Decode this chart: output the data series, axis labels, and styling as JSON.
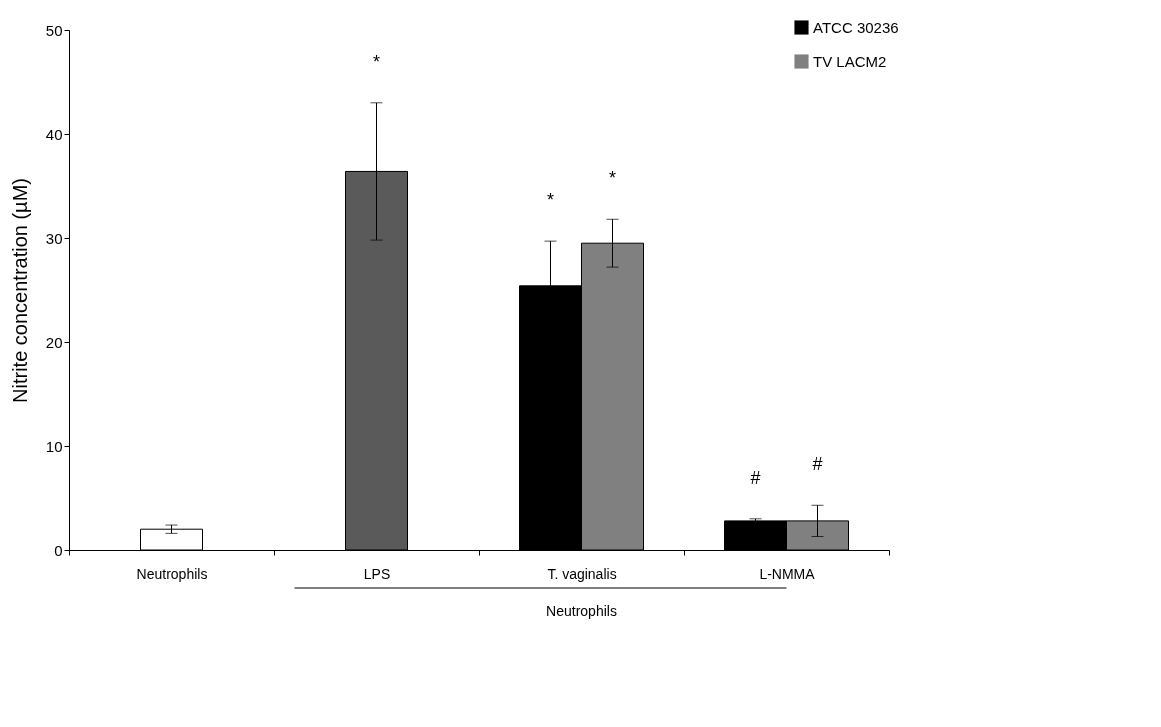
{
  "chart_data": {
    "type": "bar",
    "ylabel": "Nitrite concentration (µM)",
    "categories": [
      "Neutrophils",
      "LPS",
      "T. vaginalis",
      "L-NMMA"
    ],
    "series": [
      {
        "color": null,
        "colors": [
          "#ffffff",
          "#5a5a5a",
          null,
          null
        ],
        "values": [
          2.0,
          36.4,
          null,
          null
        ],
        "errors": [
          0.4,
          6.6,
          null,
          null
        ]
      },
      {
        "name": "ATCC 30236",
        "color": "#000000",
        "values": [
          null,
          null,
          25.4,
          2.8
        ],
        "errors": [
          null,
          null,
          4.3,
          0.2
        ]
      },
      {
        "name": "TV LACM2",
        "color": "#808080",
        "values": [
          null,
          null,
          29.5,
          2.8
        ],
        "errors": [
          null,
          null,
          2.3,
          1.5
        ]
      }
    ],
    "ylim": [
      0,
      50
    ],
    "yticks": [
      0,
      10,
      20,
      30,
      40,
      50
    ],
    "grid": false,
    "legend": "top right",
    "annotations": [
      "*",
      "*",
      "*",
      "#",
      "#",
      "Neutrophils"
    ]
  }
}
